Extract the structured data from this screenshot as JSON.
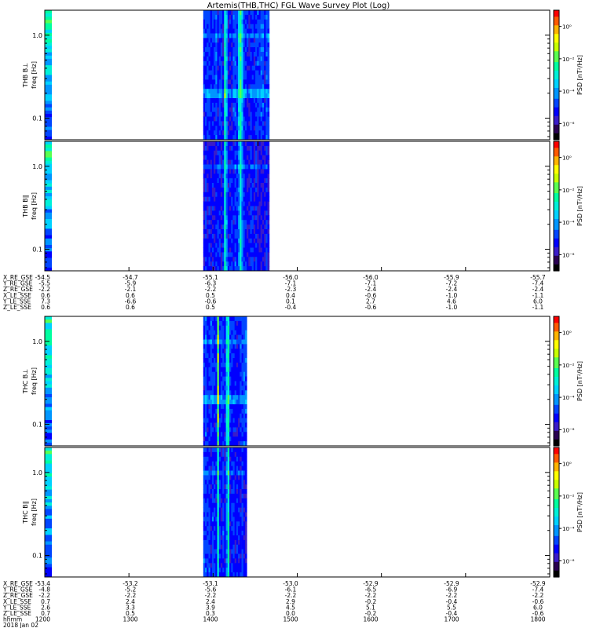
{
  "title": "Artemis(THB,THC) FGL Wave Survey Plot (Log)",
  "colors": {
    "cmap": [
      "#000000",
      "#2a0052",
      "#3b1cc9",
      "#0000ff",
      "#0046ff",
      "#0096ff",
      "#00d2ff",
      "#00f0d8",
      "#00ffa0",
      "#5aff50",
      "#c8ff00",
      "#ffff00",
      "#ffb400",
      "#ff5a00",
      "#ff0000"
    ],
    "frame": "#000000",
    "background": "#ffffff"
  },
  "chart_data": [
    {
      "type": "heatmap",
      "probe": "THB",
      "ylabel_top": "THB B⊥",
      "ylabel_unit": "freq [Hz]",
      "yscale": "log",
      "ylim": [
        0.055,
        2.0
      ],
      "ytick_labels": [
        "1.0",
        "0.1"
      ],
      "yticks": [
        1.0,
        0.1
      ],
      "data_span_hhmm": [
        "1353",
        "1440"
      ],
      "colorbar_label": "PSD [nT²/Hz]",
      "colorbar_ticks": [
        "10⁰",
        "10⁻²",
        "10⁻⁴",
        "10⁻⁶"
      ],
      "clim_log10": [
        -7,
        1
      ]
    },
    {
      "type": "heatmap",
      "probe": "THB",
      "ylabel_top": "THB B∥",
      "ylabel_unit": "freq [Hz]",
      "yscale": "log",
      "ylim": [
        0.055,
        2.0
      ],
      "ytick_labels": [
        "1.0",
        "0.1"
      ],
      "yticks": [
        1.0,
        0.1
      ],
      "data_span_hhmm": [
        "1353",
        "1440"
      ],
      "colorbar_label": "PSD [nT²/Hz]",
      "colorbar_ticks": [
        "10⁰",
        "10⁻²",
        "10⁻⁴",
        "10⁻⁶"
      ],
      "clim_log10": [
        -7,
        1
      ]
    },
    {
      "type": "heatmap",
      "probe": "THC",
      "ylabel_top": "THC B⊥",
      "ylabel_unit": "freq [Hz]",
      "yscale": "log",
      "ylim": [
        0.055,
        2.0
      ],
      "ytick_labels": [
        "1.0",
        "0.1"
      ],
      "yticks": [
        1.0,
        0.1
      ],
      "data_span_hhmm": [
        "1353",
        "1424"
      ],
      "colorbar_label": "PSD [nT²/Hz]",
      "colorbar_ticks": [
        "10⁰",
        "10⁻²",
        "10⁻⁴",
        "10⁻⁶"
      ],
      "clim_log10": [
        -7,
        1
      ]
    },
    {
      "type": "heatmap",
      "probe": "THC",
      "ylabel_top": "THC B∥",
      "ylabel_unit": "freq [Hz]",
      "yscale": "log",
      "ylim": [
        0.055,
        2.0
      ],
      "ytick_labels": [
        "1.0",
        "0.1"
      ],
      "yticks": [
        1.0,
        0.1
      ],
      "data_span_hhmm": [
        "1353",
        "1424"
      ],
      "colorbar_label": "PSD [nT²/Hz]",
      "colorbar_ticks": [
        "10⁰",
        "10⁻²",
        "10⁻⁴",
        "10⁻⁶"
      ],
      "clim_log10": [
        -7,
        1
      ]
    }
  ],
  "thb_ephemeris": {
    "labels": [
      "X_RE_GSE",
      "Y_RE_GSE",
      "Z_RE_GSE",
      "X_LE_SSE",
      "Y_LE_SSE",
      "Z_LE_SSE"
    ],
    "columns": [
      [
        "-54.5",
        "-5.5",
        "-2.2",
        "0.6",
        "7.3",
        "0.6"
      ],
      [
        "-54.7",
        "-5.9",
        "-2.1",
        "0.6",
        "-6.6",
        "0.6"
      ],
      [
        "-55.1",
        "-6.3",
        "-2.2",
        "0.5",
        "-0.6",
        "0.5"
      ],
      [
        "-56.0",
        "-7.1",
        "-2.3",
        "0.4",
        "0.1",
        "-0.4"
      ],
      [
        "-56.0",
        "-7.1",
        "-2.4",
        "-0.6",
        "2.7",
        "-0.6"
      ],
      [
        "-55.9",
        "-7.2",
        "-2.4",
        "-1.0",
        "4.6",
        "-1.0"
      ],
      [
        "-55.7",
        "-7.4",
        "-2.4",
        "-1.1",
        "6.0",
        "-1.1"
      ]
    ]
  },
  "thc_ephemeris": {
    "labels": [
      "X_RE_GSE",
      "Y_RE_GSE",
      "Z_RE_GSE",
      "X_LE_SSE",
      "Y_LE_SSE",
      "Z_LE_SSE",
      "hhmm",
      "2018 Jan 02"
    ],
    "columns": [
      [
        "-53.4",
        "-4.8",
        "-2.2",
        "0.7",
        "2.6",
        "0.7",
        "1200"
      ],
      [
        "-53.2",
        "-5.2",
        "-2.2",
        "2.4",
        "3.3",
        "0.5",
        "1300"
      ],
      [
        "-53.1",
        "-5.6",
        "-2.2",
        "2.4",
        "3.9",
        "0.3",
        "1400"
      ],
      [
        "-53.0",
        "-6.1",
        "-2.2",
        "2.9",
        "4.5",
        "0.0",
        "1500"
      ],
      [
        "-52.9",
        "-6.5",
        "-2.2",
        "-0.2",
        "5.1",
        "-0.2",
        "1600"
      ],
      [
        "-52.9",
        "-6.9",
        "-2.2",
        "-0.4",
        "5.5",
        "-0.4",
        "1700"
      ],
      [
        "-52.9",
        "-7.4",
        "-2.2",
        "-0.6",
        "6.0",
        "-0.6",
        "1800"
      ]
    ]
  }
}
